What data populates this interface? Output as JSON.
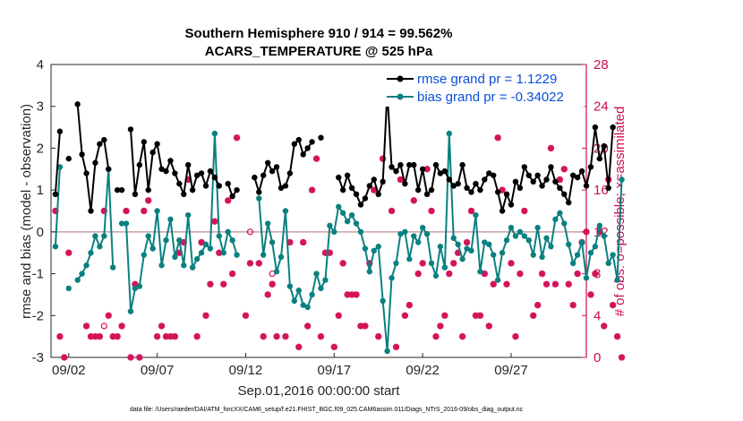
{
  "chart_data": {
    "type": "line",
    "title": "Southern Hemisphere 910 / 914 = 99.562%",
    "subtitle": "ACARS_TEMPERATURE @ 525 hPa",
    "xlabel": "Sep.01,2016 00:00:00 start",
    "ylabel_left": "rmse and bias (model - observation)",
    "ylabel_right": "# of obs: o=possible; ×=assimilated",
    "footnote": "data file: /Users/raeder/DAI/ATM_forcXX/CAM6_setup/f.e21.FHIST_BGC.f09_025.CAM6assim.011/Diags_NTrS_2016-09/obs_diag_output.nc",
    "xlim": [
      1,
      31.25
    ],
    "ylim_left": [
      -3,
      4
    ],
    "ylim_right": [
      0,
      28
    ],
    "x_ticks": [
      {
        "v": 2,
        "label": "09/02"
      },
      {
        "v": 7,
        "label": "09/07"
      },
      {
        "v": 12,
        "label": "09/12"
      },
      {
        "v": 17,
        "label": "09/17"
      },
      {
        "v": 22,
        "label": "09/22"
      },
      {
        "v": 27,
        "label": "09/27"
      }
    ],
    "left_ticks": [
      "-3",
      "-2",
      "-1",
      "0",
      "1",
      "2",
      "3",
      "4"
    ],
    "right_ticks": [
      "0",
      "4",
      "8",
      "12",
      "16",
      "20",
      "24",
      "28"
    ],
    "x_start": 1.25,
    "x_step": 0.25,
    "series": [
      {
        "name": "rmse grand pr = 1.1229",
        "color": "#000000",
        "values": [
          0.9,
          2.4,
          null,
          1.75,
          null,
          3.05,
          1.85,
          1.4,
          0.5,
          1.65,
          2.1,
          2.2,
          1.5,
          null,
          1.0,
          1.0,
          null,
          2.45,
          0.9,
          1.6,
          2.15,
          1.0,
          1.9,
          2.1,
          1.5,
          1.45,
          1.7,
          1.4,
          1.15,
          0.9,
          1.6,
          1.0,
          1.35,
          1.4,
          1.1,
          1.45,
          1.3,
          1.1,
          null,
          1.15,
          0.85,
          1.0,
          null,
          null,
          null,
          1.3,
          0.95,
          1.35,
          1.65,
          1.45,
          1.55,
          1.05,
          1.1,
          1.4,
          2.1,
          2.2,
          1.85,
          2.0,
          2.15,
          null,
          2.25,
          null,
          null,
          null,
          1.3,
          1.0,
          1.35,
          1.05,
          0.9,
          0.65,
          0.8,
          1.1,
          1.25,
          0.9,
          1.2,
          3.35,
          1.55,
          1.45,
          1.6,
          1.15,
          1.6,
          1.6,
          1.0,
          1.5,
          0.9,
          1.0,
          1.6,
          1.4,
          1.45,
          1.25,
          1.1,
          1.15,
          1.6,
          1.05,
          0.95,
          1.15,
          1.0,
          1.25,
          1.4,
          1.35,
          0.95,
          0.5,
          0.9,
          0.65,
          1.2,
          1.05,
          1.55,
          1.35,
          1.2,
          1.35,
          1.1,
          1.25,
          1.55,
          1.2,
          1.05,
          0.9,
          0.7,
          1.35,
          1.3,
          1.45,
          1.1,
          1.55,
          2.5,
          1.75,
          2.05,
          1.05,
          2.5,
          null,
          null
        ]
      },
      {
        "name": "bias grand pr = -0.34022",
        "color": "#0a8080",
        "values": [
          -0.35,
          1.55,
          null,
          -1.35,
          null,
          -1.15,
          -1.0,
          -0.8,
          -0.5,
          -0.1,
          -0.35,
          -0.1,
          1.5,
          -0.85,
          null,
          0.2,
          0.2,
          -1.9,
          -1.35,
          -1.3,
          -0.55,
          -0.1,
          -0.4,
          0.5,
          -0.8,
          -0.2,
          0.3,
          -0.6,
          -0.2,
          -0.8,
          0.4,
          -0.85,
          -0.65,
          -0.5,
          -0.3,
          -0.4,
          2.35,
          -0.1,
          -0.5,
          0.0,
          -0.2,
          -0.55,
          null,
          null,
          null,
          null,
          0.8,
          -0.55,
          0.2,
          -0.25,
          -0.95,
          -0.6,
          0.5,
          -1.3,
          -1.65,
          -1.4,
          -1.75,
          -1.8,
          -1.5,
          -1.0,
          -1.35,
          -1.15,
          0.15,
          0.0,
          0.6,
          0.45,
          0.25,
          0.4,
          0.2,
          0.0,
          -0.4,
          -0.95,
          -0.45,
          -0.35,
          -1.65,
          -2.85,
          -1.1,
          -0.75,
          -0.05,
          0.0,
          -0.65,
          -0.1,
          -0.25,
          0.1,
          -0.05,
          -0.75,
          -1.05,
          -0.35,
          -0.85,
          2.35,
          -0.15,
          -0.3,
          -0.65,
          -0.4,
          -0.45,
          0.4,
          -0.95,
          -0.25,
          -0.3,
          -0.55,
          -1.15,
          -0.5,
          -0.2,
          0.1,
          -0.1,
          0.0,
          -0.1,
          -0.2,
          -0.55,
          0.1,
          -0.6,
          -0.15,
          -0.35,
          0.3,
          0.45,
          0.2,
          -0.3,
          -0.75,
          -0.55,
          -0.25,
          -1.1,
          -0.5,
          -0.35,
          0.15,
          -0.1,
          -0.75,
          -0.55,
          -1.15,
          1.25
        ]
      }
    ],
    "obs_assimilated": {
      "color": "#d4145a",
      "values": [
        14,
        2,
        0,
        10,
        null,
        null,
        null,
        3,
        2,
        2,
        2,
        14,
        4,
        2,
        2,
        3,
        14,
        0,
        7,
        0,
        14,
        15,
        null,
        2,
        3,
        2,
        2,
        2,
        10,
        11,
        17,
        null,
        2,
        11,
        4,
        7,
        13,
        10,
        7,
        15,
        8,
        21,
        null,
        4,
        9,
        null,
        9,
        2,
        6,
        7,
        2,
        null,
        2,
        11,
        null,
        1,
        11,
        3,
        16,
        19,
        2,
        10,
        10,
        1,
        4,
        9,
        6,
        6,
        6,
        3,
        3,
        9,
        16,
        2,
        19,
        null,
        14,
        1,
        17,
        4,
        5,
        15,
        8,
        9,
        18,
        14,
        2,
        3,
        4,
        8,
        9,
        10,
        2,
        11,
        14,
        4,
        4,
        8,
        3,
        7,
        21,
        16,
        7,
        9,
        2,
        8,
        14,
        null,
        4,
        5,
        8,
        7,
        20,
        7,
        17,
        18,
        7,
        5,
        8,
        11,
        12,
        6,
        8,
        12,
        3,
        17,
        5,
        2,
        0
      ]
    },
    "obs_possible_extra": [
      {
        "x": 4.0,
        "v": 3
      },
      {
        "x": 12.25,
        "v": 12
      },
      {
        "x": 13.5,
        "v": 8
      },
      {
        "x": 13.5,
        "v": 7
      }
    ],
    "colors": {
      "axis_right": "#cc0e55",
      "zero_line": "#c8a0a0",
      "legend_text": "#0b4fd8"
    }
  }
}
